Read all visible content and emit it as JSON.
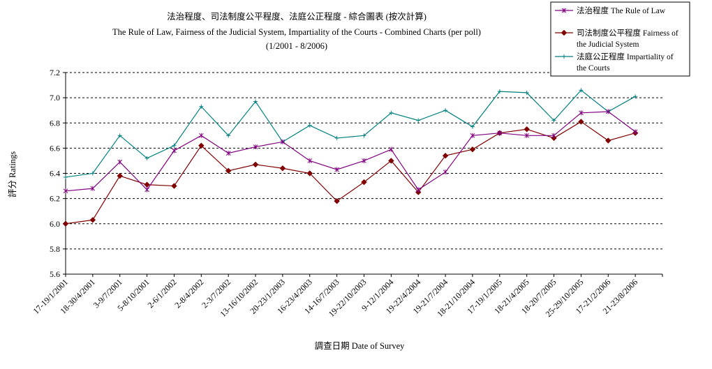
{
  "chart_data": {
    "type": "line",
    "title": "法治程度、司法制度公平程度、法庭公正程度 - 綜合圖表 (按次計算)",
    "subtitle": "The Rule of Law, Fairness of the Judicial System, Impartiality of the Courts - Combined Charts (per poll)",
    "subtitle2": "(1/2001 - 8/2006)",
    "xlabel": "調查日期 Date of Survey",
    "ylabel": "評分 Ratings",
    "ylim": [
      5.6,
      7.2
    ],
    "yticks": [
      "5.6",
      "5.8",
      "6.0",
      "6.2",
      "6.4",
      "6.6",
      "6.8",
      "7.0",
      "7.2"
    ],
    "grid": "horizontal dashed",
    "legend_position": "top-right",
    "categories": [
      "17-19/1/2001",
      "18-30/4/2001",
      "3-9/7/2001",
      "5-8/10/2001",
      "2-6/1/2002",
      "2-8/4/2002",
      "2-3/7/2002",
      "13-16/10/2002",
      "20-23/1/2003",
      "16-23/4/2003",
      "14-16/7/2003",
      "19-22/10/2003",
      "9-12/1/2004",
      "19-22/4/2004",
      "19-21/7/2004",
      "18-21/10/2004",
      "17-19/1/2005",
      "18-21/4/2005",
      "18-20/7/2005",
      "25-29/10/2005",
      "17-21/2/2006",
      "21-23/8/2006"
    ],
    "tick_labels": [
      "17-19/1/2001",
      "18-30/4/2001",
      "3-9/7/2001",
      "5-8/10/2001",
      "2-6/1/2002",
      "2-8/4/2002",
      "2-3/7/2002",
      "13-16/10/2002",
      "20-23/1/2003",
      "16-23/4/2003",
      "14-16/7/2003",
      "19-22/10/2003",
      "9-12/1/2004",
      "19-22/4/2004",
      "19-21/7/2004",
      "18-21/10/2004",
      "17-19/1/2005",
      "18-21/4/2005",
      "18-20/7/2005",
      "25-29/10/2005",
      "17-21/2/2006",
      "21-23/8/2006"
    ],
    "series": [
      {
        "name": "法治程度 The Rule of Law",
        "legend_lines": [
          "法治程度 The Rule of Law"
        ],
        "color": "#800080",
        "marker": "asterisk",
        "values": [
          6.26,
          6.28,
          6.49,
          6.27,
          6.58,
          6.7,
          6.56,
          6.61,
          6.65,
          6.5,
          6.43,
          6.5,
          6.59,
          6.27,
          6.41,
          6.7,
          6.72,
          6.7,
          6.7,
          6.88,
          6.89,
          6.73
        ]
      },
      {
        "name": "司法制度公平程度 Fairness of the Judicial System",
        "legend_lines": [
          "司法制度公平程度 Fairness of",
          "the Judicial System"
        ],
        "color": "#800000",
        "marker": "diamond",
        "values": [
          6.0,
          6.03,
          6.38,
          6.31,
          6.3,
          6.62,
          6.42,
          6.47,
          6.44,
          6.4,
          6.18,
          6.33,
          6.5,
          6.25,
          6.54,
          6.59,
          6.72,
          6.75,
          6.68,
          6.81,
          6.66,
          6.72
        ]
      },
      {
        "name": "法庭公正程度 Impartiality of the Courts",
        "legend_lines": [
          "法庭公正程度 Impartiality of",
          "the Courts"
        ],
        "color": "#008080",
        "marker": "plus",
        "values": [
          6.37,
          6.4,
          6.7,
          6.52,
          6.62,
          6.93,
          6.7,
          6.97,
          6.65,
          6.78,
          6.68,
          6.7,
          6.88,
          6.82,
          6.9,
          6.77,
          7.05,
          7.04,
          6.82,
          7.06,
          6.89,
          7.01
        ]
      }
    ]
  }
}
